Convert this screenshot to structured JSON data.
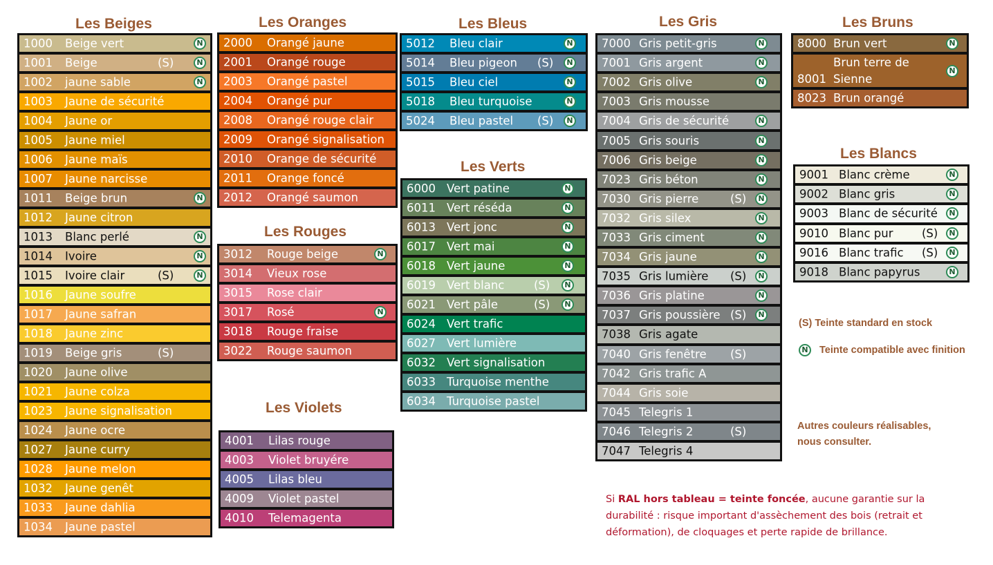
{
  "groups": [
    {
      "title": "Les Beiges",
      "colors": [
        {
          "code": "1000",
          "name": "Beige vert",
          "stock": "",
          "n": true,
          "color": "#c9bb8e"
        },
        {
          "code": "1001",
          "name": "Beige",
          "stock": "(S)",
          "n": true,
          "color": "#d0b084"
        },
        {
          "code": "1002",
          "name": "jaune sable",
          "stock": "",
          "n": true,
          "color": "#d1a463"
        },
        {
          "code": "1003",
          "name": "Jaune de sécurité",
          "stock": "",
          "n": false,
          "color": "#f9a800"
        },
        {
          "code": "1004",
          "name": "Jaune or",
          "stock": "",
          "n": false,
          "color": "#e49e00"
        },
        {
          "code": "1005",
          "name": "Jaune miel",
          "stock": "",
          "n": false,
          "color": "#cb8e00"
        },
        {
          "code": "1006",
          "name": "Jaune maïs",
          "stock": "",
          "n": false,
          "color": "#e29000"
        },
        {
          "code": "1007",
          "name": "Jaune narcisse",
          "stock": "",
          "n": false,
          "color": "#e88c00"
        },
        {
          "code": "1011",
          "name": "Beige brun",
          "stock": "",
          "n": true,
          "color": "#a7825d"
        },
        {
          "code": "1012",
          "name": "Jaune citron",
          "stock": "",
          "n": false,
          "color": "#d8a51f"
        },
        {
          "code": "1013",
          "name": "Blanc perlé",
          "stock": "",
          "n": true,
          "color": "#e3d9c6",
          "dark": true
        },
        {
          "code": "1014",
          "name": "Ivoire",
          "stock": "",
          "n": true,
          "color": "#dfc49a",
          "dark": true
        },
        {
          "code": "1015",
          "name": "Ivoire clair",
          "stock": "(S)",
          "n": true,
          "color": "#eadebd",
          "dark": true
        },
        {
          "code": "1016",
          "name": "Jaune soufre",
          "stock": "",
          "n": false,
          "color": "#edde3c"
        },
        {
          "code": "1017",
          "name": "Jaune safran",
          "stock": "",
          "n": false,
          "color": "#f6a950"
        },
        {
          "code": "1018",
          "name": "Jaune zinc",
          "stock": "",
          "n": false,
          "color": "#facb2e"
        },
        {
          "code": "1019",
          "name": "Beige gris",
          "stock": "(S)",
          "n": false,
          "color": "#a38f7a"
        },
        {
          "code": "1020",
          "name": "Jaune olive",
          "stock": "",
          "n": false,
          "color": "#a08f65"
        },
        {
          "code": "1021",
          "name": "Jaune colza",
          "stock": "",
          "n": false,
          "color": "#f6b600"
        },
        {
          "code": "1023",
          "name": "Jaune signalisation",
          "stock": "",
          "n": false,
          "color": "#f7b500"
        },
        {
          "code": "1024",
          "name": "Jaune ocre",
          "stock": "",
          "n": false,
          "color": "#ba8f4c"
        },
        {
          "code": "1027",
          "name": "Jaune curry",
          "stock": "",
          "n": false,
          "color": "#a77f0e"
        },
        {
          "code": "1028",
          "name": "Jaune melon",
          "stock": "",
          "n": false,
          "color": "#ff9b00"
        },
        {
          "code": "1032",
          "name": "Jaune genêt",
          "stock": "",
          "n": false,
          "color": "#e2a300"
        },
        {
          "code": "1033",
          "name": "Jaune dahlia",
          "stock": "",
          "n": false,
          "color": "#f99a1c"
        },
        {
          "code": "1034",
          "name": "Jaune pastel",
          "stock": "",
          "n": false,
          "color": "#eb9c52"
        }
      ]
    },
    {
      "title": "Les Oranges",
      "colors": [
        {
          "code": "2000",
          "name": "Orangé jaune",
          "stock": "",
          "n": false,
          "color": "#da6e00"
        },
        {
          "code": "2001",
          "name": "Orangé rouge",
          "stock": "",
          "n": false,
          "color": "#ba481b"
        },
        {
          "code": "2003",
          "name": "Orangé pastel",
          "stock": "",
          "n": false,
          "color": "#f67828"
        },
        {
          "code": "2004",
          "name": "Orangé pur",
          "stock": "",
          "n": false,
          "color": "#e25303"
        },
        {
          "code": "2008",
          "name": "Orangé rouge clair",
          "stock": "",
          "n": false,
          "color": "#e8671f"
        },
        {
          "code": "2009",
          "name": "Orangé signalisation",
          "stock": "",
          "n": false,
          "color": "#de5307"
        },
        {
          "code": "2010",
          "name": "Orange de sécurité",
          "stock": "",
          "n": false,
          "color": "#d05d28"
        },
        {
          "code": "2011",
          "name": "Orange foncé",
          "stock": "",
          "n": false,
          "color": "#e26e0e"
        },
        {
          "code": "2012",
          "name": "Orangé saumon",
          "stock": "",
          "n": false,
          "color": "#d5654d"
        }
      ]
    },
    {
      "title": "Les Rouges",
      "colors": [
        {
          "code": "3012",
          "name": "Rouge beige",
          "stock": "",
          "n": true,
          "color": "#c1876b"
        },
        {
          "code": "3014",
          "name": "Vieux rose",
          "stock": "",
          "n": false,
          "color": "#d36e70"
        },
        {
          "code": "3015",
          "name": "Rose clair",
          "stock": "",
          "n": false,
          "color": "#ea899a"
        },
        {
          "code": "3017",
          "name": "Rosé",
          "stock": "",
          "n": true,
          "color": "#d6535d"
        },
        {
          "code": "3018",
          "name": "Rouge fraise",
          "stock": "",
          "n": false,
          "color": "#c93a43"
        },
        {
          "code": "3022",
          "name": "Rouge saumon",
          "stock": "",
          "n": false,
          "color": "#d05e52"
        }
      ]
    },
    {
      "title": "Les Violets",
      "colors": [
        {
          "code": "4001",
          "name": "Lilas rouge",
          "stock": "",
          "n": false,
          "color": "#816183"
        },
        {
          "code": "4003",
          "name": "Violet bruyére",
          "stock": "",
          "n": false,
          "color": "#c4618c"
        },
        {
          "code": "4005",
          "name": "Lilas bleu",
          "stock": "",
          "n": false,
          "color": "#6b6b9e"
        },
        {
          "code": "4009",
          "name": "Violet pastel",
          "stock": "",
          "n": false,
          "color": "#9d8692"
        },
        {
          "code": "4010",
          "name": "Telemagenta",
          "stock": "",
          "n": false,
          "color": "#bc4077"
        }
      ]
    },
    {
      "title": "Les Bleus",
      "colors": [
        {
          "code": "5012",
          "name": "Bleu clair",
          "stock": "",
          "n": true,
          "color": "#0089b6"
        },
        {
          "code": "5014",
          "name": "Bleu pigeon",
          "stock": "(S)",
          "n": true,
          "color": "#637d96"
        },
        {
          "code": "5015",
          "name": "Bleu ciel",
          "stock": "",
          "n": true,
          "color": "#007cb0"
        },
        {
          "code": "5018",
          "name": "Bleu turquoise",
          "stock": "",
          "n": true,
          "color": "#058b8c"
        },
        {
          "code": "5024",
          "name": "Bleu pastel",
          "stock": "(S)",
          "n": true,
          "color": "#5d9bbb"
        }
      ]
    },
    {
      "title": "Les Verts",
      "colors": [
        {
          "code": "6000",
          "name": "Vert patine",
          "stock": "",
          "n": true,
          "color": "#3c7460"
        },
        {
          "code": "6011",
          "name": "Vert réséda",
          "stock": "",
          "n": true,
          "color": "#68825b"
        },
        {
          "code": "6013",
          "name": "Vert jonc",
          "stock": "",
          "n": true,
          "color": "#7d765a"
        },
        {
          "code": "6017",
          "name": "Vert mai",
          "stock": "",
          "n": true,
          "color": "#4d8542"
        },
        {
          "code": "6018",
          "name": "Vert jaune",
          "stock": "",
          "n": true,
          "color": "#4c9138"
        },
        {
          "code": "6019",
          "name": "Vert blanc",
          "stock": "(S)",
          "n": true,
          "color": "#b9ceac"
        },
        {
          "code": "6021",
          "name": "Vert pâle",
          "stock": "(S)",
          "n": true,
          "color": "#8a9977"
        },
        {
          "code": "6024",
          "name": "Vert trafic",
          "stock": "",
          "n": false,
          "color": "#008351"
        },
        {
          "code": "6027",
          "name": "Vert lumière",
          "stock": "",
          "n": false,
          "color": "#7ebab5"
        },
        {
          "code": "6032",
          "name": "Vert signalisation",
          "stock": "",
          "n": false,
          "color": "#237f52"
        },
        {
          "code": "6033",
          "name": "Turquoise menthe",
          "stock": "",
          "n": false,
          "color": "#46877f"
        },
        {
          "code": "6034",
          "name": "Turquoise pastel",
          "stock": "",
          "n": false,
          "color": "#7aacac"
        }
      ]
    },
    {
      "title": "Les Gris",
      "colors": [
        {
          "code": "7000",
          "name": "Gris petit-gris",
          "stock": "",
          "n": true,
          "color": "#7e8b92"
        },
        {
          "code": "7001",
          "name": "Gris argent",
          "stock": "",
          "n": true,
          "color": "#8f999f"
        },
        {
          "code": "7002",
          "name": "Gris olive",
          "stock": "",
          "n": true,
          "color": "#817f68"
        },
        {
          "code": "7003",
          "name": "Gris mousse",
          "stock": "",
          "n": false,
          "color": "#7a7b6d"
        },
        {
          "code": "7004",
          "name": "Gris de sécurité",
          "stock": "",
          "n": true,
          "color": "#9ea0a1"
        },
        {
          "code": "7005",
          "name": "Gris souris",
          "stock": "",
          "n": true,
          "color": "#6b716f"
        },
        {
          "code": "7006",
          "name": "Gris beige",
          "stock": "",
          "n": true,
          "color": "#756f61"
        },
        {
          "code": "7023",
          "name": "Gris béton",
          "stock": "",
          "n": true,
          "color": "#818479"
        },
        {
          "code": "7030",
          "name": "Gris pierre",
          "stock": "(S)",
          "n": true,
          "color": "#939388"
        },
        {
          "code": "7032",
          "name": "Gris silex",
          "stock": "",
          "n": true,
          "color": "#b9b9a8"
        },
        {
          "code": "7033",
          "name": "Gris ciment",
          "stock": "",
          "n": true,
          "color": "#818979"
        },
        {
          "code": "7034",
          "name": "Gris jaune",
          "stock": "",
          "n": true,
          "color": "#939176"
        },
        {
          "code": "7035",
          "name": "Gris lumière",
          "stock": "(S)",
          "n": true,
          "color": "#cbd0cc",
          "dark": true
        },
        {
          "code": "7036",
          "name": "Gris platine",
          "stock": "",
          "n": true,
          "color": "#9a9697"
        },
        {
          "code": "7037",
          "name": "Gris poussière",
          "stock": "(S)",
          "n": true,
          "color": "#7c7f7e"
        },
        {
          "code": "7038",
          "name": "Gris agate",
          "stock": "",
          "n": false,
          "color": "#b4b8b0",
          "dark": true
        },
        {
          "code": "7040",
          "name": "Gris fenêtre",
          "stock": "(S)",
          "n": false,
          "color": "#9da3a6"
        },
        {
          "code": "7042",
          "name": "Gris trafic A",
          "stock": "",
          "n": false,
          "color": "#8f9695"
        },
        {
          "code": "7044",
          "name": "Gris soie",
          "stock": "",
          "n": false,
          "color": "#b7b3a8"
        },
        {
          "code": "7045",
          "name": "Telegris 1",
          "stock": "",
          "n": false,
          "color": "#8d9295"
        },
        {
          "code": "7046",
          "name": "Telegris 2",
          "stock": "(S)",
          "n": false,
          "color": "#7f868a"
        },
        {
          "code": "7047",
          "name": "Telegris 4",
          "stock": "",
          "n": false,
          "color": "#c8c8c7",
          "dark": true
        }
      ]
    },
    {
      "title": "Les Bruns",
      "colors": [
        {
          "code": "8000",
          "name": "Brun vert",
          "stock": "",
          "n": true,
          "color": "#89693f"
        },
        {
          "code": "8001",
          "name": "Brun terre de Sienne",
          "stock": "",
          "n": true,
          "color": "#9d622b"
        },
        {
          "code": "8023",
          "name": "Brun orangé",
          "stock": "",
          "n": false,
          "color": "#a65e2f"
        }
      ]
    },
    {
      "title": "Les Blancs",
      "colors": [
        {
          "code": "9001",
          "name": "Blanc crème",
          "stock": "",
          "n": true,
          "color": "#efebdc",
          "dark": true
        },
        {
          "code": "9002",
          "name": "Blanc gris",
          "stock": "",
          "n": true,
          "color": "#dddfd7",
          "dark": true
        },
        {
          "code": "9003",
          "name": "Blanc de sécurité",
          "stock": "",
          "n": true,
          "color": "#f4f8f4",
          "dark": true
        },
        {
          "code": "9010",
          "name": "Blanc pur",
          "stock": "(S)",
          "n": true,
          "color": "#f7f9ef",
          "dark": true
        },
        {
          "code": "9016",
          "name": "Blanc trafic",
          "stock": "(S)",
          "n": true,
          "color": "#f7f9f4",
          "dark": true
        },
        {
          "code": "9018",
          "name": "Blanc papyrus",
          "stock": "",
          "n": true,
          "color": "#cfd3cd",
          "dark": true
        }
      ]
    }
  ],
  "legend": {
    "stock_mark": "(S)",
    "stock_text": "Teinte standard en stock",
    "badge_letter": "N",
    "finish_text": "Teinte compatible avec finition",
    "other_line1": "Autres couleurs réalisables,",
    "other_line2": "nous consulter."
  },
  "warning": {
    "prefix": "Si ",
    "bold": "RAL hors tableau = teinte foncée",
    "rest": ", aucune garantie sur la durabilité : risque important d'assèchement des bois (retrait et déformation), de cloquages et perte rapide de brillance."
  },
  "colors": {
    "title": "#9a5b34",
    "warning": "#b0172e",
    "badge_ring": "#2e8b57",
    "box_border": "#111111"
  }
}
